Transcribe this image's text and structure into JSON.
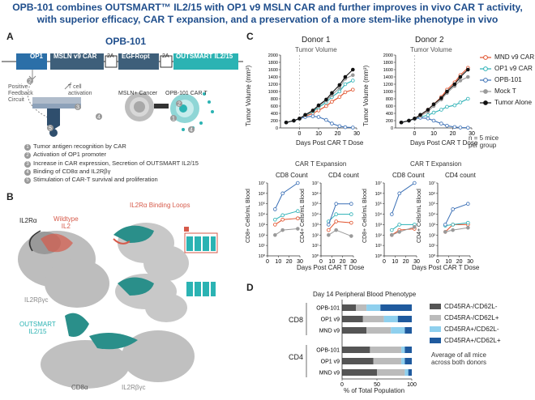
{
  "title_lines": [
    "OPB-101 combines OUTSMART™ IL2/15 with OP1 v9 MSLN CAR and further improves in vivo CAR T activity,",
    "with superior efficacy, CAR T expansion, and a preservation of a more stem-like phenotype in vivo"
  ],
  "panelA": {
    "label": "A",
    "construct_title": "OPB-101",
    "segments": [
      "OP1",
      "MSLN v9 CAR",
      "2A",
      "EGFRopt",
      "2A",
      "OUTSMART IL2/15"
    ],
    "feedback_label": "Positive\nFeedback\nCircuit",
    "activation_label": "T cell\nactivation",
    "cancer_label": "MSLN+ Cancer",
    "cart_label": "OPB-101 CAR T",
    "steps": [
      "Tumor antigen recognition by CAR",
      "Activation of OP1 promoter",
      "Increase in CAR expression, Secretion of OUTSMART IL2/15",
      "Binding of CD8α and IL2Rβγ",
      "Stimulation of CAR-T survival and proliferation"
    ]
  },
  "panelB": {
    "label": "B",
    "il2ra": "IL2Rα",
    "wildtype": "Wildtype\nIL2",
    "loops": "IL2Rα Binding Loops",
    "il2rbg": "IL2Rβγc",
    "outsmart": "OUTSMART\nIL2/15",
    "cd8a": "CD8α",
    "il2rbg2": "IL2Rβγc"
  },
  "panelC": {
    "label": "C",
    "donors": [
      "Donor 1",
      "Donor 2"
    ],
    "tumor_title": "Tumor Volume",
    "tumor_ylabel": "Tumor Volume (mm³)",
    "tumor_xlabel": "Days Post CAR T Dose",
    "expansion_title": "CAR T Expansion",
    "cd8_title": "CD8 Count",
    "cd4_title": "CD4 count",
    "cd8_ylabel": "CD8+ Cells/mL Blood",
    "cd4_ylabel": "CD4+ Cells/mL Blood",
    "count_xlabel": "Days Post CAR T Dose",
    "legend_note": "n = 5 mice\nper group",
    "colors": {
      "MND v9 CAR": "#e0502a",
      "OP1 v9 CAR": "#2ab0b5",
      "OPB-101": "#3a6fb5",
      "Mock T": "#9a9a9a",
      "Tumor Alone": "#111111"
    }
  },
  "chart_data": [
    {
      "type": "line",
      "title": "Tumor Volume",
      "subtitle": "Donor 1",
      "xlabel": "Days Post CAR T Dose",
      "ylabel": "Tumor Volume (mm³)",
      "xlim": [
        -10,
        30
      ],
      "ylim": [
        0,
        2000
      ],
      "x_ticks": [
        0,
        10,
        20,
        30
      ],
      "y_ticks": [
        0,
        200,
        400,
        600,
        800,
        1000,
        1200,
        1400,
        1600,
        1800,
        2000
      ],
      "series": [
        {
          "name": "MND v9 CAR",
          "x": [
            -7,
            -3,
            0,
            3,
            7,
            10,
            14,
            17,
            21,
            24,
            28
          ],
          "values": [
            150,
            200,
            250,
            320,
            400,
            480,
            600,
            720,
            850,
            980,
            1050
          ]
        },
        {
          "name": "OP1 v9 CAR",
          "x": [
            -7,
            -3,
            0,
            3,
            7,
            10,
            14,
            17,
            21,
            24,
            28
          ],
          "values": [
            150,
            200,
            250,
            340,
            450,
            560,
            700,
            850,
            1000,
            1200,
            1300
          ]
        },
        {
          "name": "OPB-101",
          "x": [
            -7,
            -3,
            0,
            3,
            7,
            10,
            14,
            17,
            21,
            24,
            28
          ],
          "values": [
            150,
            200,
            250,
            300,
            320,
            300,
            220,
            120,
            50,
            20,
            10
          ]
        },
        {
          "name": "Mock T",
          "x": [
            -7,
            -3,
            0,
            3,
            7,
            10,
            14,
            17,
            21,
            24,
            28
          ],
          "values": [
            150,
            200,
            250,
            350,
            470,
            600,
            750,
            900,
            1100,
            1350,
            1450
          ]
        },
        {
          "name": "Tumor Alone",
          "x": [
            -7,
            -3,
            0,
            3,
            7,
            10,
            14,
            17,
            21,
            24,
            28
          ],
          "values": [
            150,
            200,
            260,
            360,
            480,
            620,
            780,
            960,
            1180,
            1400,
            1600
          ]
        }
      ]
    },
    {
      "type": "line",
      "title": "Tumor Volume",
      "subtitle": "Donor 2",
      "xlabel": "Days Post CAR T Dose",
      "ylabel": "",
      "xlim": [
        -10,
        30
      ],
      "ylim": [
        0,
        2000
      ],
      "x_ticks": [
        0,
        10,
        20,
        30
      ],
      "y_ticks": [
        0,
        200,
        400,
        600,
        800,
        1000,
        1200,
        1400,
        1600,
        1800,
        2000
      ],
      "series": [
        {
          "name": "MND v9 CAR",
          "x": [
            -7,
            -3,
            0,
            3,
            7,
            10,
            14,
            17,
            21,
            24,
            28
          ],
          "values": [
            150,
            200,
            250,
            350,
            500,
            650,
            850,
            1050,
            1250,
            1450,
            1650
          ]
        },
        {
          "name": "OP1 v9 CAR",
          "x": [
            -7,
            -3,
            0,
            3,
            7,
            10,
            14,
            17,
            21,
            24,
            28
          ],
          "values": [
            150,
            200,
            250,
            300,
            350,
            420,
            500,
            580,
            620,
            700,
            800
          ]
        },
        {
          "name": "OPB-101",
          "x": [
            -7,
            -3,
            0,
            3,
            7,
            10,
            14,
            17,
            21,
            24,
            28
          ],
          "values": [
            150,
            200,
            250,
            280,
            260,
            200,
            120,
            60,
            25,
            10,
            5
          ]
        },
        {
          "name": "Mock T",
          "x": [
            -7,
            -3,
            0,
            3,
            7,
            10,
            14,
            17,
            21,
            24,
            28
          ],
          "values": [
            150,
            200,
            250,
            330,
            450,
            600,
            780,
            960,
            1150,
            1300,
            1400
          ]
        },
        {
          "name": "Tumor Alone",
          "x": [
            -7,
            -3,
            0,
            3,
            7,
            10,
            14,
            17,
            21,
            24,
            28
          ],
          "values": [
            150,
            200,
            260,
            360,
            500,
            650,
            820,
            1000,
            1200,
            1400,
            1600
          ]
        }
      ]
    },
    {
      "type": "line",
      "title": "CD8 Count",
      "subtitle": "Donor 1",
      "ylabel": "CD8+ Cells/mL Blood",
      "xlabel": "Days Post CAR T Dose",
      "xlim": [
        0,
        30
      ],
      "ylim_log10": [
        0,
        7
      ],
      "x_ticks": [
        0,
        10,
        20,
        30
      ],
      "series": [
        {
          "name": "MND v9 CAR",
          "x": [
            7,
            14,
            28
          ],
          "values": [
            1000,
            3000,
            4000
          ]
        },
        {
          "name": "OP1 v9 CAR",
          "x": [
            7,
            14,
            28
          ],
          "values": [
            3000,
            8000,
            20000
          ]
        },
        {
          "name": "OPB-101",
          "x": [
            7,
            14,
            28
          ],
          "values": [
            30000,
            1000000,
            10000000
          ]
        },
        {
          "name": "Mock T",
          "x": [
            7,
            14,
            28
          ],
          "values": [
            100,
            300,
            400
          ]
        }
      ]
    },
    {
      "type": "line",
      "title": "CD4 count",
      "subtitle": "Donor 1",
      "ylabel": "CD4+ Cells/mL Blood",
      "xlabel": "Days Post CAR T Dose",
      "xlim": [
        0,
        30
      ],
      "ylim_log10": [
        0,
        7
      ],
      "x_ticks": [
        0,
        10,
        20,
        30
      ],
      "series": [
        {
          "name": "MND v9 CAR",
          "x": [
            7,
            14,
            28
          ],
          "values": [
            300,
            2000,
            1500
          ]
        },
        {
          "name": "OP1 v9 CAR",
          "x": [
            7,
            14,
            28
          ],
          "values": [
            2000,
            10000,
            10000
          ]
        },
        {
          "name": "OPB-101",
          "x": [
            7,
            14,
            28
          ],
          "values": [
            1000,
            100000,
            100000
          ]
        },
        {
          "name": "Mock T",
          "x": [
            7,
            14,
            28
          ],
          "values": [
            100,
            300,
            80
          ]
        }
      ]
    },
    {
      "type": "line",
      "title": "CD8 Count",
      "subtitle": "Donor 2",
      "ylabel": "CD8+ Cells/mL Blood",
      "xlabel": "Days Post CAR T Dose",
      "xlim": [
        0,
        30
      ],
      "ylim_log10": [
        0,
        7
      ],
      "x_ticks": [
        0,
        10,
        20,
        30
      ],
      "series": [
        {
          "name": "MND v9 CAR",
          "x": [
            7,
            14,
            28
          ],
          "values": [
            100,
            300,
            400
          ]
        },
        {
          "name": "OP1 v9 CAR",
          "x": [
            7,
            14,
            28
          ],
          "values": [
            300,
            1000,
            1000
          ]
        },
        {
          "name": "OPB-101",
          "x": [
            7,
            14,
            28
          ],
          "values": [
            10000,
            1000000,
            10000000
          ]
        },
        {
          "name": "Mock T",
          "x": [
            7,
            14,
            28
          ],
          "values": [
            100,
            200,
            600
          ]
        }
      ]
    },
    {
      "type": "line",
      "title": "CD4 count",
      "subtitle": "Donor 2",
      "ylabel": "CD4+ Cells/mL Blood",
      "xlabel": "Days Post CAR T Dose",
      "xlim": [
        0,
        30
      ],
      "ylim_log10": [
        0,
        7
      ],
      "x_ticks": [
        0,
        10,
        20,
        30
      ],
      "series": [
        {
          "name": "MND v9 CAR",
          "x": [
            7,
            14,
            28
          ],
          "values": [
            200,
            1000,
            1000
          ]
        },
        {
          "name": "OP1 v9 CAR",
          "x": [
            7,
            14,
            28
          ],
          "values": [
            800,
            1000,
            1500
          ]
        },
        {
          "name": "OPB-101",
          "x": [
            7,
            14,
            28
          ],
          "values": [
            1000,
            30000,
            100000
          ]
        },
        {
          "name": "Mock T",
          "x": [
            7,
            14,
            28
          ],
          "values": [
            200,
            300,
            500
          ]
        }
      ]
    },
    {
      "type": "bar",
      "orientation": "horizontal",
      "stacked": true,
      "title": "Day 14 Peripheral Blood Phenotype",
      "xlabel": "% of Total Population",
      "xlim": [
        0,
        100
      ],
      "x_ticks": [
        0,
        50,
        100
      ],
      "categories": [
        "OPB-101",
        "OP1 v9",
        "MND v9",
        "OPB-101",
        "OP1 v9",
        "MND v9"
      ],
      "groups": [
        "CD8",
        "CD8",
        "CD8",
        "CD4",
        "CD4",
        "CD4"
      ],
      "series": [
        {
          "name": "CD45RA-/CD62L-",
          "values": [
            20,
            30,
            35,
            40,
            45,
            50
          ]
        },
        {
          "name": "CD45RA-/CD62L+",
          "values": [
            15,
            30,
            35,
            45,
            40,
            40
          ]
        },
        {
          "name": "CD45RA+/CD62L-",
          "values": [
            20,
            20,
            20,
            5,
            5,
            5
          ]
        },
        {
          "name": "CD45RA+/CD62L+",
          "values": [
            45,
            20,
            10,
            10,
            10,
            5
          ]
        }
      ]
    }
  ],
  "panelD": {
    "label": "D",
    "title": "Day 14 Peripheral Blood Phenotype",
    "xlabel": "% of Total Population",
    "groups": [
      "CD8",
      "CD4"
    ],
    "legend": [
      "CD45RA-/CD62L-",
      "CD45RA-/CD62L+",
      "CD45RA+/CD62L-",
      "CD45RA+/CD62L+"
    ],
    "legend_colors": [
      "#555555",
      "#bbbbbb",
      "#8fd0ee",
      "#1f5a9e"
    ],
    "note": "Average of all mice\nacross both donors"
  }
}
